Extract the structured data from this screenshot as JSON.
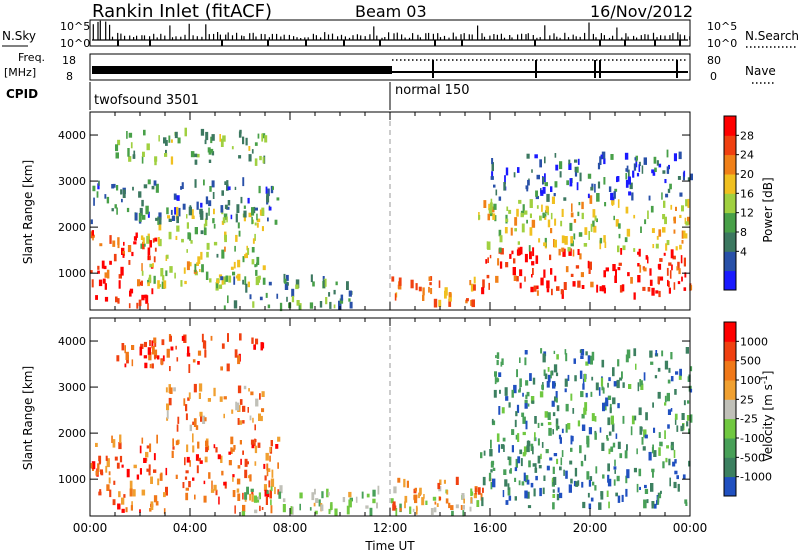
{
  "header": {
    "station": "Rankin Inlet (fitACF)",
    "beam": "Beam 03",
    "date": "16/Nov/2012"
  },
  "panels": {
    "nsky_label": "N.Sky",
    "nsearch_label": "N.Search",
    "log_ticks": [
      "10^5",
      "10^0"
    ],
    "freq_label_line1": "Freq.",
    "freq_label_line2": "[MHz]",
    "freq_ticks": [
      "18",
      "8"
    ],
    "nave_ticks": [
      "80",
      "0"
    ],
    "nave_label": "Nave",
    "cpid_label": "CPID",
    "cpid_modes": [
      "twofsound 3501",
      "normal 150"
    ]
  },
  "chart_data": [
    {
      "type": "heatmap",
      "title": "",
      "xlabel": "Time UT",
      "ylabel": "Slant Range [km]",
      "x_ticks": [
        "00:00",
        "04:00",
        "08:00",
        "12:00",
        "16:00",
        "20:00",
        "00:00"
      ],
      "y_ticks": [
        "1000",
        "2000",
        "3000",
        "4000"
      ],
      "xlim": [
        0,
        24
      ],
      "ylim": [
        200,
        4500
      ],
      "colorbar": {
        "label": "Power [dB]",
        "ticks": [
          "28",
          "24",
          "20",
          "16",
          "12",
          "8",
          "4"
        ],
        "colors": [
          "#1a1aff",
          "#2850a8",
          "#3c7860",
          "#48a048",
          "#a0d040",
          "#f0c020",
          "#f08018",
          "#f04010",
          "#ff0000"
        ]
      },
      "regions": [
        {
          "t0": 0.0,
          "t1": 2.6,
          "r0": 250,
          "r1": 1900,
          "level": 0.88
        },
        {
          "t0": 2.0,
          "t1": 7.0,
          "r0": 700,
          "r1": 2400,
          "level": 0.5
        },
        {
          "t0": 0.0,
          "t1": 7.5,
          "r0": 2100,
          "r1": 3000,
          "level": 0.25
        },
        {
          "t0": 1.0,
          "t1": 7.0,
          "r0": 3400,
          "r1": 4100,
          "level": 0.4
        },
        {
          "t0": 5.0,
          "t1": 10.5,
          "r0": 250,
          "r1": 900,
          "level": 0.3
        },
        {
          "t0": 12.0,
          "t1": 15.5,
          "r0": 300,
          "r1": 900,
          "level": 0.72
        },
        {
          "t0": 15.5,
          "t1": 24.0,
          "r0": 500,
          "r1": 1500,
          "level": 0.92
        },
        {
          "t0": 15.5,
          "t1": 24.0,
          "r0": 1500,
          "r1": 2600,
          "level": 0.55
        },
        {
          "t0": 16.0,
          "t1": 24.0,
          "r0": 2600,
          "r1": 3600,
          "level": 0.2
        }
      ]
    },
    {
      "type": "heatmap",
      "title": "",
      "xlabel": "Time UT",
      "ylabel": "Slant Range [km]",
      "x_ticks": [
        "00:00",
        "04:00",
        "08:00",
        "12:00",
        "16:00",
        "20:00",
        "00:00"
      ],
      "y_ticks": [
        "1000",
        "2000",
        "3000",
        "4000"
      ],
      "xlim": [
        0,
        24
      ],
      "ylim": [
        200,
        4500
      ],
      "colorbar": {
        "label": "Velocity [m s^-1]",
        "ticks": [
          "1000",
          "500",
          "100",
          "25",
          "-25",
          "-100",
          "-500",
          "-1000"
        ],
        "colors": [
          "#2050c0",
          "#3c8060",
          "#48a058",
          "#70c840",
          "#c0c0b8",
          "#f0a030",
          "#f07818",
          "#f04010",
          "#ff0000"
        ]
      },
      "regions": [
        {
          "t0": 0.0,
          "t1": 7.5,
          "r0": 300,
          "r1": 1900,
          "level": 0.78
        },
        {
          "t0": 1.0,
          "t1": 7.0,
          "r0": 3400,
          "r1": 4100,
          "level": 0.85
        },
        {
          "t0": 3.0,
          "t1": 7.0,
          "r0": 2100,
          "r1": 3000,
          "level": 0.7
        },
        {
          "t0": 6.0,
          "t1": 15.5,
          "r0": 250,
          "r1": 800,
          "level": 0.4
        },
        {
          "t0": 12.0,
          "t1": 16.0,
          "r0": 300,
          "r1": 1000,
          "level": 0.72
        },
        {
          "t0": 15.5,
          "t1": 24.0,
          "r0": 400,
          "r1": 1600,
          "level": 0.18
        },
        {
          "t0": 16.0,
          "t1": 24.0,
          "r0": 1600,
          "r1": 3800,
          "level": 0.2
        }
      ]
    }
  ]
}
